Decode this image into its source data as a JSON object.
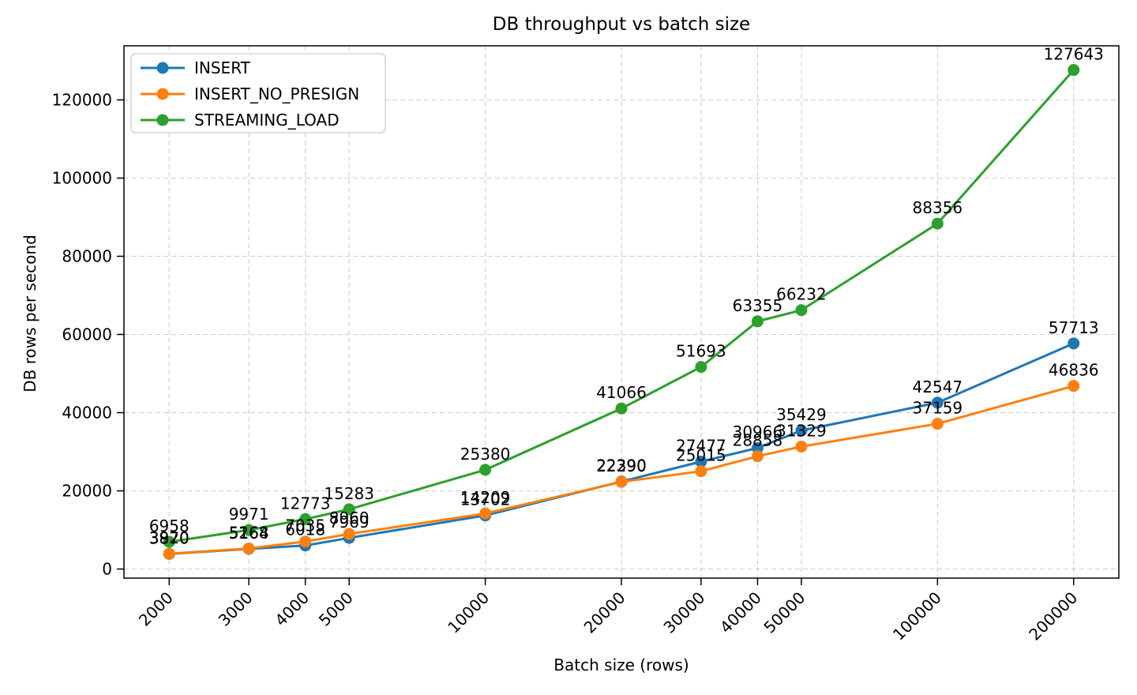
{
  "figure": {
    "title": "DB throughput vs batch size",
    "xlabel": "Batch size (rows)",
    "ylabel": "DB rows per second"
  },
  "chart_data": {
    "type": "line",
    "title": "DB throughput vs batch size",
    "xlabel": "Batch size (rows)",
    "ylabel": "DB rows per second",
    "x_scale": "log",
    "grid": true,
    "grid_style": "dashed",
    "grid_color": "#d3d3d3",
    "legend_position": "upper-left",
    "background_color": "#ffffff",
    "x": [
      2000,
      3000,
      4000,
      5000,
      10000,
      20000,
      30000,
      40000,
      50000,
      100000,
      200000
    ],
    "x_tick_labels": [
      "2000",
      "3000",
      "4000",
      "5000",
      "10000",
      "20000",
      "30000",
      "40000",
      "50000",
      "100000",
      "200000"
    ],
    "y_ticks": [
      0,
      20000,
      40000,
      60000,
      80000,
      100000,
      120000
    ],
    "y_tick_labels": [
      "0",
      "20000",
      "40000",
      "60000",
      "80000",
      "100000",
      "120000"
    ],
    "xlim_log10": [
      3.201,
      5.401
    ],
    "ylim": [
      -2319,
      133832
    ],
    "point_labels_shown": true,
    "series": [
      {
        "name": "INSERT",
        "color": "#1f77b4",
        "values": [
          3870,
          5164,
          6018,
          7969,
          13702,
          22390,
          27477,
          30966,
          35429,
          42547,
          57713
        ]
      },
      {
        "name": "INSERT_NO_PRESIGN",
        "color": "#ff7f0e",
        "values": [
          3920,
          5268,
          7035,
          8960,
          14209,
          22290,
          25015,
          28858,
          31329,
          37159,
          46836
        ]
      },
      {
        "name": "STREAMING_LOAD",
        "color": "#2ca02c",
        "values": [
          6958,
          9971,
          12773,
          15283,
          25380,
          41066,
          51693,
          63355,
          66232,
          88356,
          127643
        ]
      }
    ]
  }
}
